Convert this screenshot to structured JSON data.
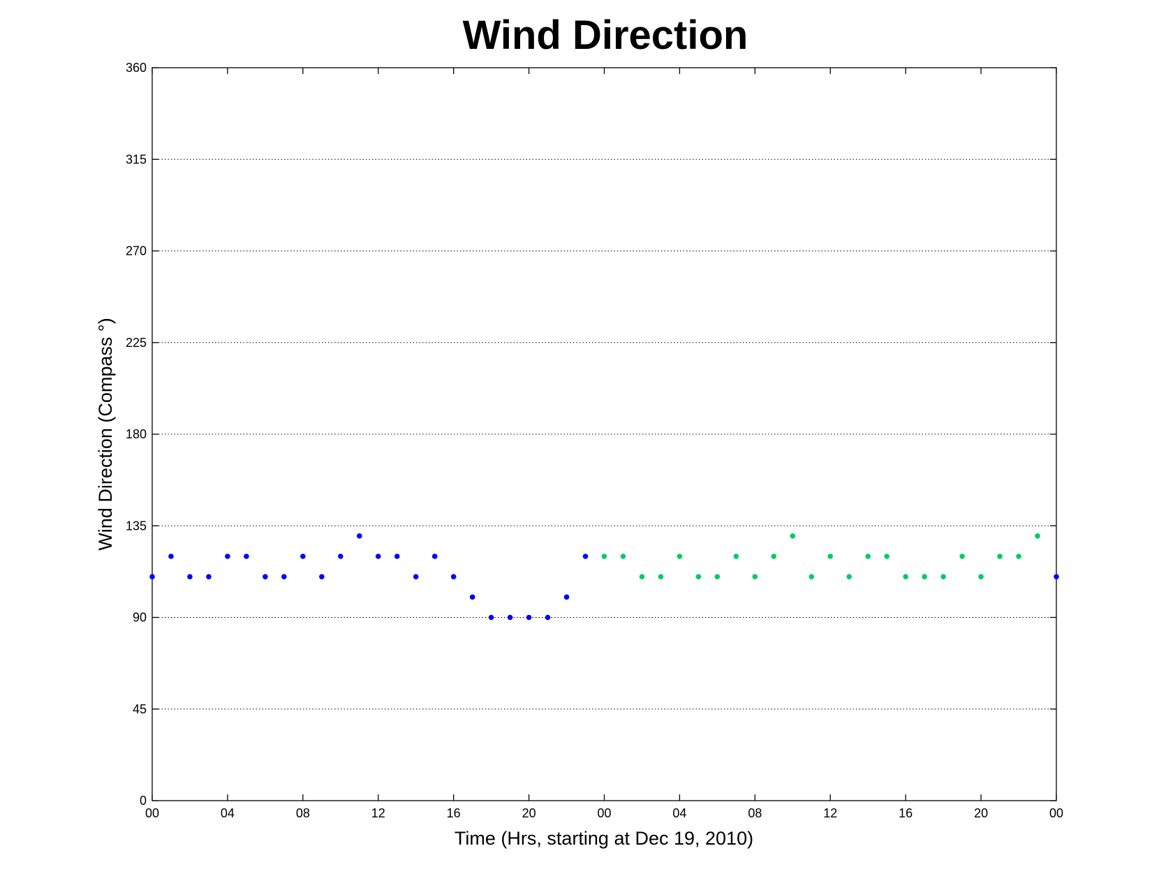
{
  "chart_data": {
    "type": "scatter",
    "title": "Wind Direction",
    "xlabel": "Time (Hrs, starting at Dec 19, 2010)",
    "ylabel": "Wind Direction (Compass  °)",
    "ylim": [
      0,
      360
    ],
    "xlim": [
      0,
      48
    ],
    "y_ticks": [
      0,
      45,
      90,
      135,
      180,
      225,
      270,
      315,
      360
    ],
    "x_ticks": [
      {
        "x": 0,
        "label": "00"
      },
      {
        "x": 4,
        "label": "04"
      },
      {
        "x": 8,
        "label": "08"
      },
      {
        "x": 12,
        "label": "12"
      },
      {
        "x": 16,
        "label": "16"
      },
      {
        "x": 20,
        "label": "20"
      },
      {
        "x": 24,
        "label": "00"
      },
      {
        "x": 28,
        "label": "04"
      },
      {
        "x": 32,
        "label": "08"
      },
      {
        "x": 36,
        "label": "12"
      },
      {
        "x": 40,
        "label": "16"
      },
      {
        "x": 44,
        "label": "20"
      },
      {
        "x": 48,
        "label": "00"
      }
    ],
    "grid": "horizontal",
    "series": [
      {
        "color": "#0000ff",
        "x": [
          0,
          1,
          2,
          3,
          4,
          5,
          6,
          7,
          8,
          9,
          10,
          11,
          12,
          13,
          14,
          15,
          16,
          17,
          18,
          19,
          20,
          21,
          22,
          23,
          48
        ],
        "y": [
          110,
          120,
          110,
          110,
          120,
          120,
          110,
          110,
          120,
          110,
          120,
          130,
          120,
          120,
          110,
          120,
          110,
          100,
          90,
          90,
          90,
          90,
          100,
          120,
          110
        ]
      },
      {
        "color": "#00cc66",
        "x": [
          24,
          25,
          26,
          27,
          28,
          29,
          30,
          31,
          32,
          33,
          34,
          35,
          36,
          37,
          38,
          39,
          40,
          41,
          42,
          43,
          44,
          45,
          46,
          47
        ],
        "y": [
          120,
          120,
          110,
          110,
          120,
          110,
          110,
          120,
          110,
          120,
          130,
          110,
          120,
          110,
          120,
          120,
          110,
          110,
          110,
          120,
          110,
          120,
          120,
          130
        ]
      }
    ]
  }
}
